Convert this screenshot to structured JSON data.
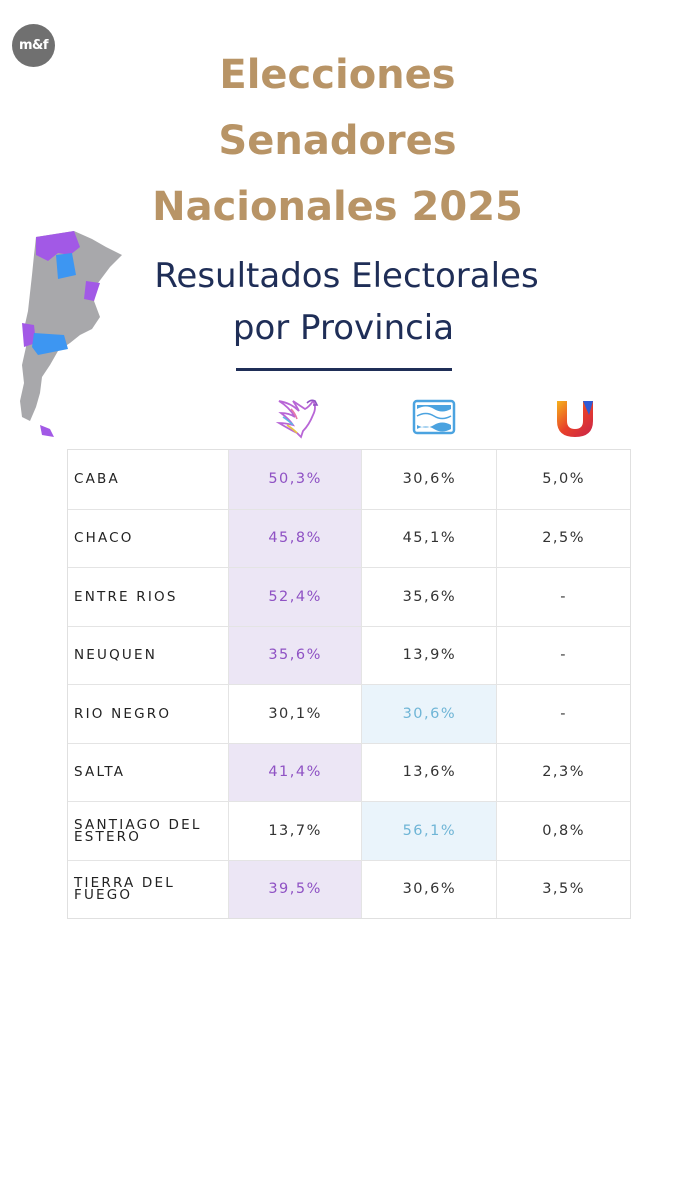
{
  "brand": {
    "logo_text": "m&f"
  },
  "title": {
    "line1": "Elecciones",
    "line2": "Senadores",
    "line3": "Nacionales 2025"
  },
  "subtitle": {
    "line1": "Resultados Electorales",
    "line2": "por Provincia"
  },
  "parties": [
    {
      "icon": "lla-eagle-icon"
    },
    {
      "icon": "argentina-flag-icon"
    },
    {
      "icon": "u-logo-icon"
    }
  ],
  "colors": {
    "title": "#b89466",
    "subtitle": "#1f2e57",
    "lla_win": "#8f52c4",
    "fp_win": "#6fb5d6"
  },
  "rows": [
    {
      "province": "CABA",
      "v1": "50,3%",
      "v2": "30,6%",
      "v3": "5,0%",
      "winner": 1
    },
    {
      "province": "CHACO",
      "v1": "45,8%",
      "v2": "45,1%",
      "v3": "2,5%",
      "winner": 1
    },
    {
      "province": "ENTRE RIOS",
      "v1": "52,4%",
      "v2": "35,6%",
      "v3": "-",
      "winner": 1
    },
    {
      "province": "NEUQUEN",
      "v1": "35,6%",
      "v2": "13,9%",
      "v3": "-",
      "winner": 1
    },
    {
      "province": "RIO NEGRO",
      "v1": "30,1%",
      "v2": "30,6%",
      "v3": "-",
      "winner": 2
    },
    {
      "province": "SALTA",
      "v1": "41,4%",
      "v2": "13,6%",
      "v3": "2,3%",
      "winner": 1
    },
    {
      "province": "SANTIAGO DEL ESTERO",
      "v1": "13,7%",
      "v2": "56,1%",
      "v3": "0,8%",
      "winner": 2
    },
    {
      "province": "TIERRA DEL FUEGO",
      "v1": "39,5%",
      "v2": "30,6%",
      "v3": "3,5%",
      "winner": 1
    }
  ]
}
